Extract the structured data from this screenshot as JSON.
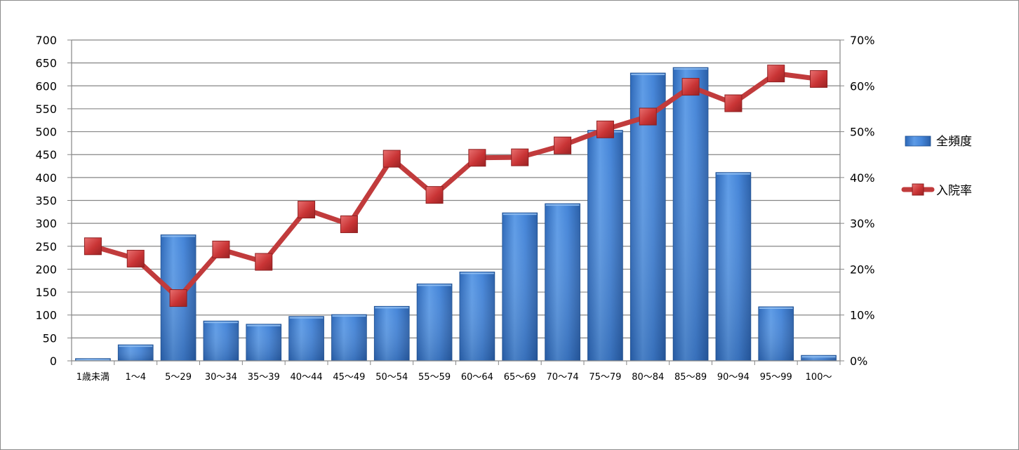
{
  "chart_data": {
    "type": "bar+line",
    "categories": [
      "1歳未満",
      "1～4",
      "5～29",
      "30～34",
      "35～39",
      "40～44",
      "45～49",
      "50～54",
      "55～59",
      "60～64",
      "65～69",
      "70～74",
      "75～79",
      "80～84",
      "85～89",
      "90～94",
      "95～99",
      "100～"
    ],
    "series": [
      {
        "name": "全頻度",
        "type": "bar",
        "axis": "left",
        "color": "#3f7fd4",
        "values": [
          5,
          35,
          275,
          87,
          80,
          97,
          101,
          119,
          168,
          194,
          323,
          343,
          503,
          628,
          640,
          411,
          118,
          12
        ]
      },
      {
        "name": "入院率",
        "type": "line",
        "axis": "right",
        "color": "#c0393a",
        "values": [
          0.25,
          0.223,
          0.137,
          0.243,
          0.216,
          0.33,
          0.298,
          0.441,
          0.362,
          0.443,
          0.444,
          0.47,
          0.505,
          0.533,
          0.598,
          0.562,
          0.627,
          0.615
        ]
      }
    ],
    "y_left": {
      "min": 0,
      "max": 700,
      "ticks": [
        "0",
        "50",
        "100",
        "150",
        "200",
        "250",
        "300",
        "350",
        "400",
        "450",
        "500",
        "550",
        "600",
        "650",
        "700"
      ]
    },
    "y_right": {
      "min": 0,
      "max": 0.7,
      "ticks": [
        "0%",
        "10%",
        "20%",
        "30%",
        "40%",
        "50%",
        "60%",
        "70%"
      ]
    },
    "grid": true,
    "legend_position": "right"
  }
}
